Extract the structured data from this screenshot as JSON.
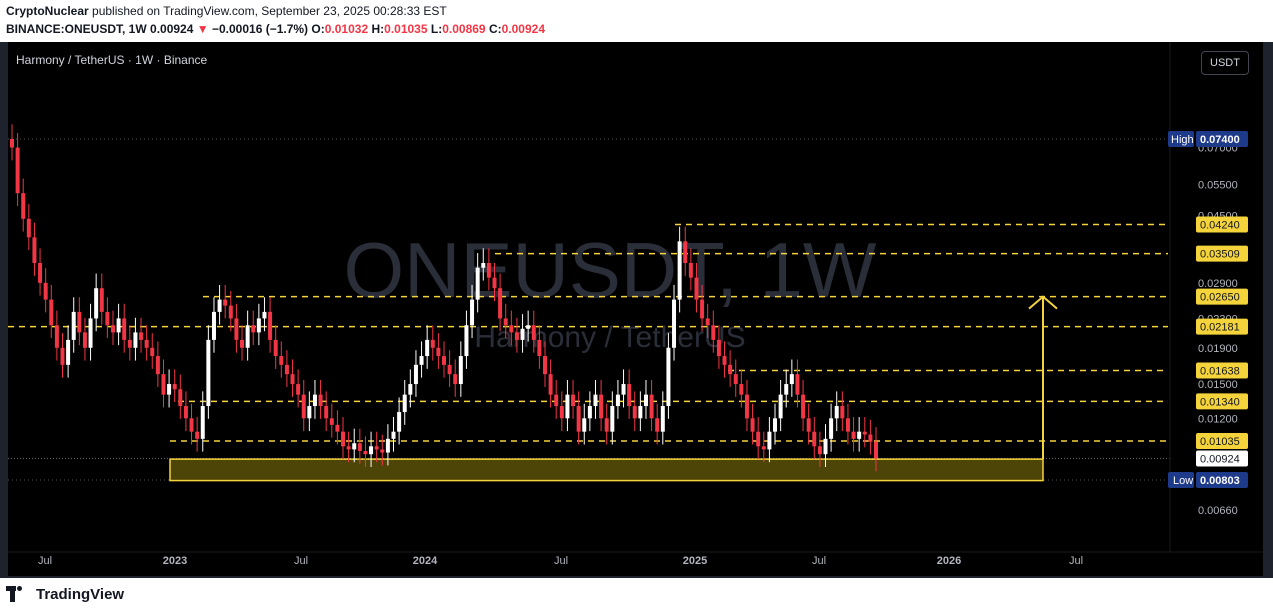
{
  "header": {
    "author": "CryptoNuclear",
    "published_text": "published on TradingView.com, September 23, 2025 00:28:33 EST",
    "symbol": "BINANCE:ONEUSDT, 1W",
    "last": "0.00924",
    "change_arrow": "▼",
    "change": "−0.00016 (−1.7%)",
    "o_label": "O:",
    "o_val": "0.01032",
    "h_label": "H:",
    "h_val": "0.01035",
    "l_label": "L:",
    "l_val": "0.00869",
    "c_label": "C:",
    "c_val": "0.00924"
  },
  "legend_title": "Harmony / TetherUS · 1W · Binance",
  "currency_button": "USDT",
  "footer": {
    "brand": "TradingView"
  },
  "colors": {
    "up": "#ffffff",
    "down": "#f23645",
    "level": "#f5d33a",
    "zone_fill": "#4d4408",
    "badge_blue": "#1e3a8a"
  },
  "chart_data": {
    "type": "candlestick",
    "title": "",
    "watermark_main": "ONEUSDT, 1W",
    "watermark_sub": "Harmony / TetherUS",
    "y_scale": "log",
    "ylim": [
      0.0058,
      0.083
    ],
    "x_ticks": [
      "Jul",
      "2023",
      "Jul",
      "2024",
      "Jul",
      "2025",
      "Jul",
      "2026",
      "Jul"
    ],
    "y_tick_labels": [
      "0.07000",
      "0.05500",
      "0.04500",
      "0.02900",
      "0.02300",
      "0.01900",
      "0.01500",
      "0.01200",
      "0.00660"
    ],
    "price_levels": [
      0.0424,
      0.03509,
      0.0265,
      0.02181,
      0.01638,
      0.0134,
      0.01035
    ],
    "price_level_labels": [
      "0.04240",
      "0.03509",
      "0.02650",
      "0.02181",
      "0.01638",
      "0.01340",
      "0.01035"
    ],
    "high_marker": {
      "label": "High",
      "value": "0.07400"
    },
    "low_marker": {
      "label": "Low",
      "value": "0.00803"
    },
    "last_price": "0.00924",
    "support_zone": {
      "top": 0.0092,
      "bottom": 0.008
    },
    "target_arrow": {
      "from": 0.0092,
      "to": 0.0265
    },
    "closes": [
      0.07,
      0.052,
      0.044,
      0.039,
      0.033,
      0.029,
      0.026,
      0.022,
      0.019,
      0.017,
      0.02,
      0.024,
      0.021,
      0.019,
      0.023,
      0.028,
      0.024,
      0.022,
      0.021,
      0.023,
      0.02,
      0.019,
      0.021,
      0.02,
      0.019,
      0.018,
      0.016,
      0.014,
      0.015,
      0.0145,
      0.013,
      0.012,
      0.011,
      0.0105,
      0.013,
      0.02,
      0.024,
      0.026,
      0.025,
      0.023,
      0.02,
      0.019,
      0.022,
      0.021,
      0.023,
      0.024,
      0.02,
      0.018,
      0.017,
      0.016,
      0.015,
      0.014,
      0.012,
      0.013,
      0.014,
      0.013,
      0.012,
      0.0115,
      0.011,
      0.01,
      0.0098,
      0.0102,
      0.0097,
      0.0095,
      0.01,
      0.0098,
      0.0096,
      0.0105,
      0.011,
      0.0125,
      0.014,
      0.015,
      0.017,
      0.018,
      0.02,
      0.019,
      0.018,
      0.017,
      0.016,
      0.015,
      0.018,
      0.022,
      0.026,
      0.032,
      0.033,
      0.03,
      0.028,
      0.023,
      0.022,
      0.021,
      0.02,
      0.0215,
      0.022,
      0.02,
      0.018,
      0.016,
      0.014,
      0.013,
      0.012,
      0.014,
      0.013,
      0.011,
      0.012,
      0.013,
      0.014,
      0.012,
      0.011,
      0.013,
      0.014,
      0.015,
      0.013,
      0.012,
      0.013,
      0.014,
      0.012,
      0.011,
      0.013,
      0.019,
      0.026,
      0.038,
      0.033,
      0.03,
      0.026,
      0.023,
      0.022,
      0.02,
      0.018,
      0.017,
      0.016,
      0.015,
      0.014,
      0.012,
      0.011,
      0.01,
      0.0098,
      0.011,
      0.012,
      0.014,
      0.015,
      0.016,
      0.014,
      0.012,
      0.011,
      0.01,
      0.0095,
      0.0105,
      0.012,
      0.013,
      0.012,
      0.011,
      0.0105,
      0.011,
      0.0108,
      0.0103,
      0.00924
    ]
  }
}
